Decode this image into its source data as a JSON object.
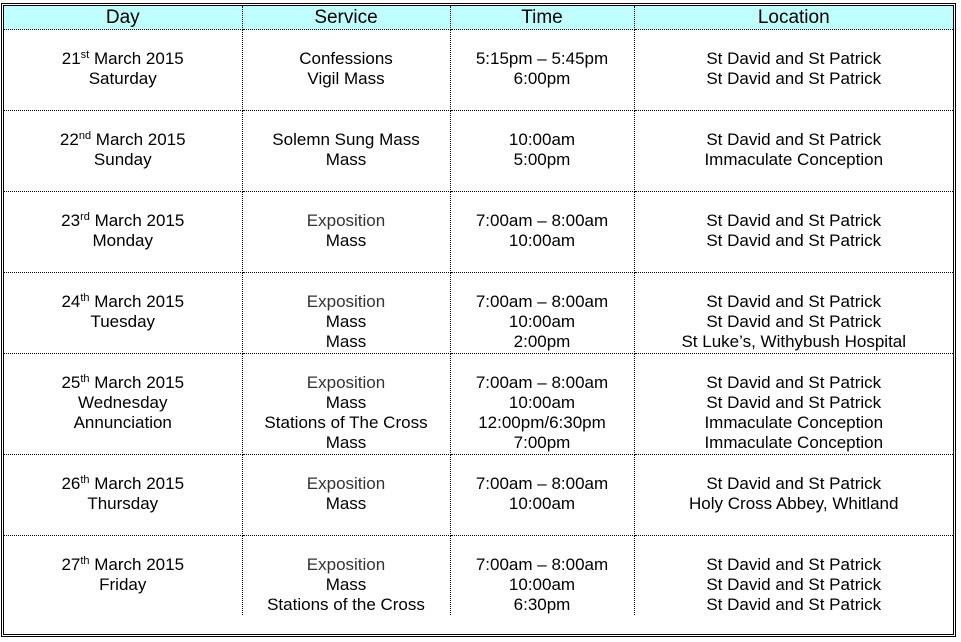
{
  "header": {
    "day": "Day",
    "service": "Service",
    "time": "Time",
    "location": "Location"
  },
  "header_color": "#c0ffff",
  "rows": [
    {
      "day": {
        "num": "21",
        "sup": "st",
        "rest": " March 2015",
        "lines": [
          "Saturday"
        ]
      },
      "service": [
        "Confessions",
        "Vigil Mass"
      ],
      "time": [
        "5:15pm – 5:45pm",
        "6:00pm"
      ],
      "location": [
        "St David and St Patrick",
        "St David and St Patrick"
      ]
    },
    {
      "day": {
        "num": "22",
        "sup": "nd",
        "rest": " March 2015",
        "lines": [
          "Sunday"
        ]
      },
      "service": [
        "Solemn Sung Mass",
        "Mass"
      ],
      "time": [
        "10:00am",
        "5:00pm"
      ],
      "location": [
        "St David and St Patrick",
        "Immaculate Conception"
      ]
    },
    {
      "day": {
        "num": "23",
        "sup": "rd",
        "rest": " March 2015",
        "lines": [
          "Monday"
        ]
      },
      "service": [
        "Exposition",
        "Mass"
      ],
      "time": [
        "7:00am – 8:00am",
        "10:00am"
      ],
      "location": [
        "St David and St Patrick",
        "St David and St Patrick"
      ]
    },
    {
      "day": {
        "num": "24",
        "sup": "th",
        "rest": " March 2015",
        "lines": [
          "Tuesday"
        ]
      },
      "service": [
        "Exposition",
        "Mass",
        "Mass"
      ],
      "time": [
        "7:00am – 8:00am",
        "10:00am",
        "2:00pm"
      ],
      "location": [
        "St David and St Patrick",
        "St David and St Patrick",
        "St Luke’s, Withybush Hospital"
      ]
    },
    {
      "day": {
        "num": "25",
        "sup": "th",
        "rest": " March 2015",
        "lines": [
          "Wednesday",
          "Annunciation"
        ]
      },
      "service": [
        "Exposition",
        "Mass",
        "Stations of The Cross",
        "Mass"
      ],
      "time": [
        "7:00am – 8:00am",
        "10:00am",
        "12:00pm/6:30pm",
        "7:00pm"
      ],
      "location": [
        "St David and St Patrick",
        "St David and St Patrick",
        "Immaculate Conception",
        "Immaculate Conception"
      ]
    },
    {
      "day": {
        "num": "26",
        "sup": "th",
        "rest": " March 2015",
        "lines": [
          "Thursday"
        ]
      },
      "service": [
        "Exposition",
        "Mass"
      ],
      "time": [
        "7:00am – 8:00am",
        "10:00am"
      ],
      "location": [
        "St David and St Patrick",
        "Holy Cross Abbey, Whitland"
      ]
    },
    {
      "day": {
        "num": "27",
        "sup": "th",
        "rest": " March 2015",
        "lines": [
          "Friday"
        ]
      },
      "service": [
        "Exposition",
        "Mass",
        "Stations of the Cross"
      ],
      "time": [
        "7:00am – 8:00am",
        "10:00am",
        "6:30pm"
      ],
      "location": [
        "St David and St Patrick",
        "St David and St Patrick",
        "St David and St Patrick"
      ]
    }
  ]
}
